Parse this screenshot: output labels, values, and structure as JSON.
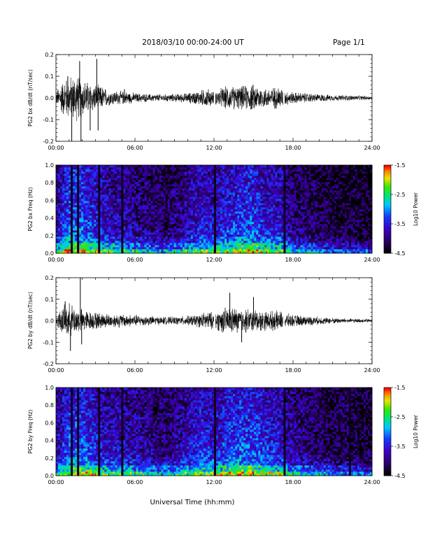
{
  "header": {
    "title": "2018/03/10   00:00-24:00 UT",
    "page": "Page 1/1"
  },
  "xlabel": "Universal Time (hh:mm)",
  "chart_data": [
    {
      "type": "line",
      "ylabel": "PG2 bx dB/dt (nT/sec)",
      "xlim": [
        0,
        24
      ],
      "ylim": [
        -0.2,
        0.2
      ],
      "xticks": [
        "00:00",
        "06:00",
        "12:00",
        "18:00",
        "24:00"
      ],
      "yticks": [
        "-0.2",
        "-0.1",
        "0.0",
        "0.1",
        "0.2"
      ],
      "envelope": {
        "x": [
          0,
          0.5,
          1,
          1.5,
          2,
          2.5,
          3,
          3.5,
          4,
          5,
          6,
          7,
          8,
          9,
          10,
          11,
          11.5,
          12,
          12.5,
          13,
          14,
          15,
          16,
          17,
          17.3,
          18,
          19,
          20,
          21,
          22,
          23,
          24
        ],
        "amp": [
          0.03,
          0.09,
          0.11,
          0.12,
          0.1,
          0.08,
          0.07,
          0.06,
          0.04,
          0.035,
          0.025,
          0.02,
          0.02,
          0.02,
          0.025,
          0.04,
          0.05,
          0.03,
          0.05,
          0.06,
          0.06,
          0.07,
          0.05,
          0.06,
          0.04,
          0.03,
          0.025,
          0.02,
          0.015,
          0.015,
          0.012,
          0.01
        ]
      },
      "spikes": [
        {
          "x": 0.9,
          "y": 0.1
        },
        {
          "x": 1.2,
          "y": -0.2
        },
        {
          "x": 1.8,
          "y": 0.17
        },
        {
          "x": 1.9,
          "y": -0.2
        },
        {
          "x": 3.1,
          "y": 0.18
        },
        {
          "x": 2.6,
          "y": -0.15
        },
        {
          "x": 3.2,
          "y": -0.15
        },
        {
          "x": 5.2,
          "y": 0.04
        }
      ],
      "gaps": [
        12.05,
        17.3
      ]
    },
    {
      "type": "heatmap",
      "ylabel": "PG2 bx Freq (Hz)",
      "xlim": [
        0,
        24
      ],
      "ylim": [
        0.0,
        1.0
      ],
      "xticks": [
        "00:00",
        "06:00",
        "12:00",
        "18:00",
        "24:00"
      ],
      "yticks": [
        "0.0",
        "0.2",
        "0.4",
        "0.6",
        "0.8",
        "1.0"
      ],
      "colorbar": {
        "label": "Log10 Power",
        "ticks": [
          "-1.5",
          "-2.5",
          "-3.5",
          "-4.5"
        ],
        "range": [
          -4.5,
          -1.5
        ]
      },
      "activity": {
        "x": [
          0,
          1,
          2,
          3,
          4,
          5,
          6,
          7,
          8,
          9,
          10,
          11,
          12,
          13,
          14,
          15,
          16,
          17,
          18,
          19,
          20,
          21,
          22,
          23,
          24
        ],
        "level": [
          0.45,
          0.75,
          0.7,
          0.6,
          0.5,
          0.45,
          0.4,
          0.35,
          0.3,
          0.35,
          0.45,
          0.55,
          0.5,
          0.6,
          0.65,
          0.7,
          0.55,
          0.55,
          0.35,
          0.3,
          0.25,
          0.2,
          0.2,
          0.15,
          0.15
        ]
      },
      "dark_columns": [
        1.2,
        1.7,
        3.3,
        5.0,
        12.1,
        17.35
      ]
    },
    {
      "type": "line",
      "ylabel": "PG2 by dB/dt (nT/sec)",
      "xlim": [
        0,
        24
      ],
      "ylim": [
        -0.2,
        0.2
      ],
      "xticks": [
        "00:00",
        "06:00",
        "12:00",
        "18:00",
        "24:00"
      ],
      "yticks": [
        "-0.2",
        "-0.1",
        "0.0",
        "0.1",
        "0.2"
      ],
      "envelope": {
        "x": [
          0,
          0.5,
          1,
          1.5,
          2,
          2.5,
          3,
          3.5,
          4,
          5,
          6,
          7,
          8,
          9,
          10,
          11,
          11.5,
          12,
          12.5,
          13,
          14,
          15,
          16,
          17,
          17.3,
          18,
          19,
          20,
          21,
          22,
          23,
          24
        ],
        "amp": [
          0.03,
          0.07,
          0.09,
          0.07,
          0.06,
          0.05,
          0.045,
          0.04,
          0.035,
          0.035,
          0.03,
          0.025,
          0.02,
          0.02,
          0.025,
          0.035,
          0.05,
          0.04,
          0.06,
          0.07,
          0.065,
          0.06,
          0.05,
          0.05,
          0.04,
          0.03,
          0.025,
          0.02,
          0.015,
          0.012,
          0.01,
          0.01
        ]
      },
      "spikes": [
        {
          "x": 0.7,
          "y": 0.09
        },
        {
          "x": 1.1,
          "y": -0.14
        },
        {
          "x": 1.85,
          "y": 0.2
        },
        {
          "x": 1.95,
          "y": -0.11
        },
        {
          "x": 13.2,
          "y": 0.13
        },
        {
          "x": 15.0,
          "y": 0.11
        },
        {
          "x": 14.1,
          "y": -0.1
        }
      ],
      "gaps": [
        12.05,
        17.3
      ]
    },
    {
      "type": "heatmap",
      "ylabel": "PG2 by Freq (Hz)",
      "xlim": [
        0,
        24
      ],
      "ylim": [
        0.0,
        1.0
      ],
      "xticks": [
        "00:00",
        "06:00",
        "12:00",
        "18:00",
        "24:00"
      ],
      "yticks": [
        "0.0",
        "0.2",
        "0.4",
        "0.6",
        "0.8",
        "1.0"
      ],
      "colorbar": {
        "label": "Log10 Power",
        "ticks": [
          "-1.5",
          "-2.5",
          "-3.5",
          "-4.5"
        ],
        "range": [
          -4.5,
          -1.5
        ]
      },
      "activity": {
        "x": [
          0,
          1,
          2,
          3,
          4,
          5,
          6,
          7,
          8,
          9,
          10,
          11,
          12,
          13,
          14,
          15,
          16,
          17,
          18,
          19,
          20,
          21,
          22,
          23,
          24
        ],
        "level": [
          0.45,
          0.7,
          0.7,
          0.6,
          0.5,
          0.5,
          0.45,
          0.4,
          0.35,
          0.4,
          0.5,
          0.6,
          0.55,
          0.65,
          0.7,
          0.7,
          0.6,
          0.55,
          0.4,
          0.35,
          0.3,
          0.25,
          0.25,
          0.2,
          0.2
        ]
      },
      "dark_columns": [
        1.2,
        1.7,
        3.3,
        5.0,
        12.1,
        17.35,
        22.3
      ]
    }
  ]
}
